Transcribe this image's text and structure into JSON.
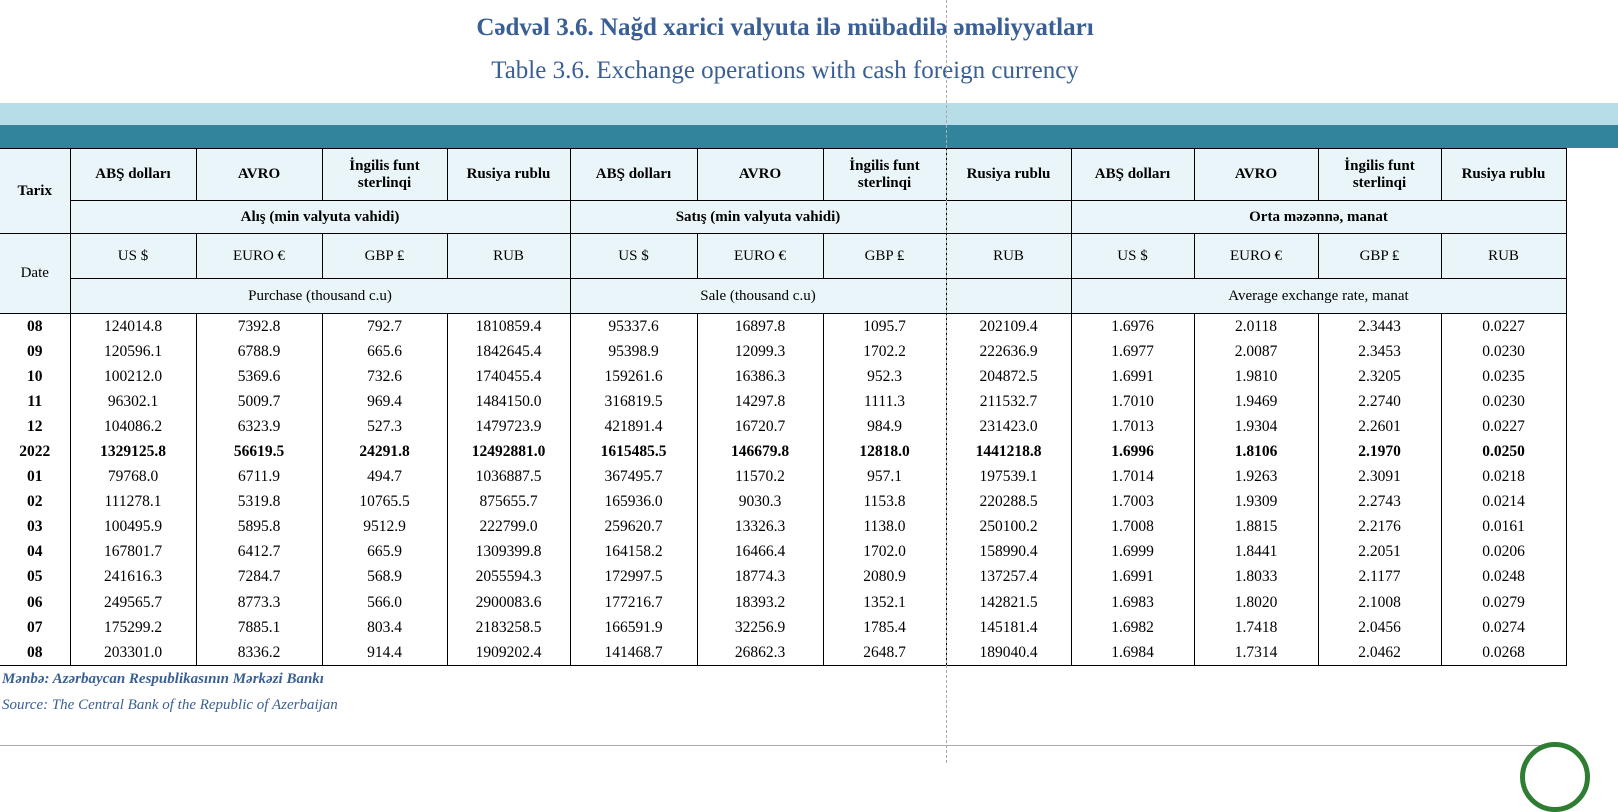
{
  "title": {
    "az": "Cədvəl 3.6. Nağd xarici valyuta ilə mübadilə əməliyyatları",
    "en": "Table 3.6. Exchange operations with cash foreign currency"
  },
  "header": {
    "date_az": "Tarix",
    "date_en": "Date",
    "currencies_az": [
      "ABŞ dolları",
      "AVRO",
      "İngilis funt sterlinqi",
      "Rusiya rublu"
    ],
    "currencies_en": [
      "US $",
      "EURO €",
      "GBP ₤",
      "RUB"
    ],
    "groups_az": [
      "Alış (min valyuta vahidi)",
      "Satış (min valyuta vahidi)",
      "Orta məzənnə, manat"
    ],
    "groups_en": [
      "Purchase   (thousand c.u)",
      "Sale (thousand c.u)",
      "Average exchange rate, manat"
    ]
  },
  "rows": [
    {
      "date": "08",
      "bold": false,
      "values": [
        "124014.8",
        "7392.8",
        "792.7",
        "1810859.4",
        "95337.6",
        "16897.8",
        "1095.7",
        "202109.4",
        "1.6976",
        "2.0118",
        "2.3443",
        "0.0227"
      ]
    },
    {
      "date": "09",
      "bold": false,
      "values": [
        "120596.1",
        "6788.9",
        "665.6",
        "1842645.4",
        "95398.9",
        "12099.3",
        "1702.2",
        "222636.9",
        "1.6977",
        "2.0087",
        "2.3453",
        "0.0230"
      ]
    },
    {
      "date": "10",
      "bold": false,
      "values": [
        "100212.0",
        "5369.6",
        "732.6",
        "1740455.4",
        "159261.6",
        "16386.3",
        "952.3",
        "204872.5",
        "1.6991",
        "1.9810",
        "2.3205",
        "0.0235"
      ]
    },
    {
      "date": "11",
      "bold": false,
      "values": [
        "96302.1",
        "5009.7",
        "969.4",
        "1484150.0",
        "316819.5",
        "14297.8",
        "1111.3",
        "211532.7",
        "1.7010",
        "1.9469",
        "2.2740",
        "0.0230"
      ]
    },
    {
      "date": "12",
      "bold": false,
      "values": [
        "104086.2",
        "6323.9",
        "527.3",
        "1479723.9",
        "421891.4",
        "16720.7",
        "984.9",
        "231423.0",
        "1.7013",
        "1.9304",
        "2.2601",
        "0.0227"
      ]
    },
    {
      "date": "2022",
      "bold": true,
      "values": [
        "1329125.8",
        "56619.5",
        "24291.8",
        "12492881.0",
        "1615485.5",
        "146679.8",
        "12818.0",
        "1441218.8",
        "1.6996",
        "1.8106",
        "2.1970",
        "0.0250"
      ]
    },
    {
      "date": "01",
      "bold": false,
      "values": [
        "79768.0",
        "6711.9",
        "494.7",
        "1036887.5",
        "367495.7",
        "11570.2",
        "957.1",
        "197539.1",
        "1.7014",
        "1.9263",
        "2.3091",
        "0.0218"
      ]
    },
    {
      "date": "02",
      "bold": false,
      "values": [
        "111278.1",
        "5319.8",
        "10765.5",
        "875655.7",
        "165936.0",
        "9030.3",
        "1153.8",
        "220288.5",
        "1.7003",
        "1.9309",
        "2.2743",
        "0.0214"
      ]
    },
    {
      "date": "03",
      "bold": false,
      "values": [
        "100495.9",
        "5895.8",
        "9512.9",
        "222799.0",
        "259620.7",
        "13326.3",
        "1138.0",
        "250100.2",
        "1.7008",
        "1.8815",
        "2.2176",
        "0.0161"
      ]
    },
    {
      "date": "04",
      "bold": false,
      "values": [
        "167801.7",
        "6412.7",
        "665.9",
        "1309399.8",
        "164158.2",
        "16466.4",
        "1702.0",
        "158990.4",
        "1.6999",
        "1.8441",
        "2.2051",
        "0.0206"
      ]
    },
    {
      "date": "05",
      "bold": false,
      "values": [
        "241616.3",
        "7284.7",
        "568.9",
        "2055594.3",
        "172997.5",
        "18774.3",
        "2080.9",
        "137257.4",
        "1.6991",
        "1.8033",
        "2.1177",
        "0.0248"
      ]
    },
    {
      "date": "06",
      "bold": false,
      "values": [
        "249565.7",
        "8773.3",
        "566.0",
        "2900083.6",
        "177216.7",
        "18393.2",
        "1352.1",
        "142821.5",
        "1.6983",
        "1.8020",
        "2.1008",
        "0.0279"
      ]
    },
    {
      "date": "07",
      "bold": false,
      "values": [
        "175299.2",
        "7885.1",
        "803.4",
        "2183258.5",
        "166591.9",
        "32256.9",
        "1785.4",
        "145181.4",
        "1.6982",
        "1.7418",
        "2.0456",
        "0.0274"
      ]
    },
    {
      "date": "08",
      "bold": false,
      "values": [
        "203301.0",
        "8336.2",
        "914.4",
        "1909202.4",
        "141468.7",
        "26862.3",
        "2648.7",
        "189040.4",
        "1.6984",
        "1.7314",
        "2.0462",
        "0.0268"
      ]
    }
  ],
  "source": {
    "az": "Mənbə: Azərbaycan Respublikasının Mərkəzi Bankı",
    "en": "Source: The Central Bank of the Republic of Azerbaijan"
  },
  "colors": {
    "title": "#3a5f95",
    "band_light": "#b6dde8",
    "band_dark": "#31849b",
    "header_bg": "#eaf5f9"
  }
}
